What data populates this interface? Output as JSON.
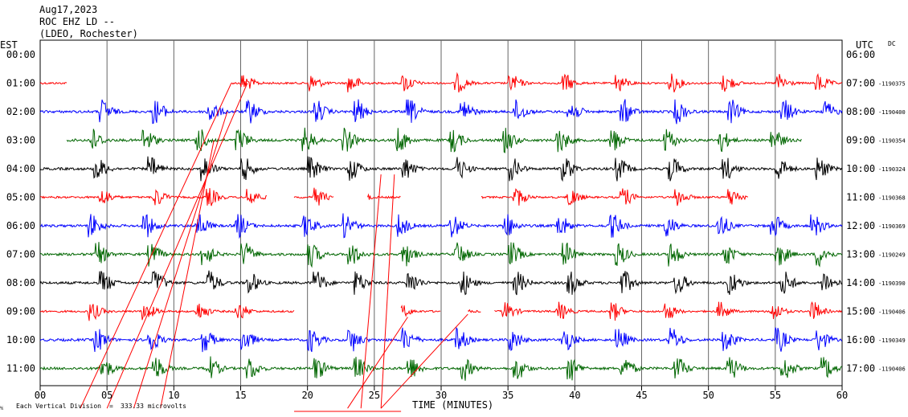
{
  "header": {
    "date": "Aug17,2023",
    "station": "ROC EHZ LD --",
    "network": "(LDEO, Rochester)"
  },
  "left_axis_label": "EST",
  "right_axis_label": "UTC",
  "dc_label": "DC",
  "chart_data": {
    "type": "line",
    "title": "ROC EHZ LD --",
    "xlabel": "TIME (MINUTES)",
    "xlim": [
      0,
      60
    ],
    "x_ticks": [
      "00",
      "05",
      "10",
      "15",
      "20",
      "25",
      "30",
      "35",
      "40",
      "45",
      "50",
      "55",
      "60"
    ],
    "grid": "vertical lines every 5 minutes",
    "scale_note_prefix": "Each Vertical Division",
    "scale_note": "333.33 microvolts",
    "colors": {
      "red": "#ff0000",
      "blue": "#0000ff",
      "green": "#006600",
      "black": "#000000"
    },
    "rows": [
      {
        "est": "00:00",
        "utc": "06:00",
        "dc": "",
        "color": "red",
        "segments": []
      },
      {
        "est": "01:00",
        "utc": "07:00",
        "dc": "1190375",
        "color": "red",
        "segments": [
          [
            0,
            2
          ],
          [
            14.3,
            60
          ]
        ]
      },
      {
        "est": "02:00",
        "utc": "08:00",
        "dc": "1190400",
        "color": "blue",
        "segments": [
          [
            0,
            60
          ]
        ]
      },
      {
        "est": "03:00",
        "utc": "09:00",
        "dc": "1190354",
        "color": "green",
        "segments": [
          [
            2,
            57
          ]
        ]
      },
      {
        "est": "04:00",
        "utc": "10:00",
        "dc": "1190324",
        "color": "black",
        "segments": [
          [
            0,
            60
          ]
        ]
      },
      {
        "est": "05:00",
        "utc": "11:00",
        "dc": "1190368",
        "color": "red",
        "segments": [
          [
            0,
            17
          ],
          [
            19,
            22
          ],
          [
            24.5,
            27
          ],
          [
            33,
            53
          ]
        ]
      },
      {
        "est": "06:00",
        "utc": "12:00",
        "dc": "1190369",
        "color": "blue",
        "segments": [
          [
            0,
            60
          ]
        ]
      },
      {
        "est": "07:00",
        "utc": "13:00",
        "dc": "1190249",
        "color": "green",
        "segments": [
          [
            0,
            60
          ]
        ]
      },
      {
        "est": "08:00",
        "utc": "14:00",
        "dc": "1190390",
        "color": "black",
        "segments": [
          [
            0,
            60
          ]
        ]
      },
      {
        "est": "09:00",
        "utc": "15:00",
        "dc": "1190406",
        "color": "red",
        "segments": [
          [
            0,
            19
          ],
          [
            27,
            30
          ],
          [
            32,
            33
          ],
          [
            34,
            60
          ]
        ]
      },
      {
        "est": "10:00",
        "utc": "16:00",
        "dc": "1190349",
        "color": "blue",
        "segments": [
          [
            0,
            60
          ]
        ]
      },
      {
        "est": "11:00",
        "utc": "17:00",
        "dc": "1190406",
        "color": "green",
        "segments": [
          [
            0,
            60
          ]
        ]
      }
    ],
    "events_minutes": [
      4,
      8,
      12,
      15,
      20,
      23,
      27,
      31,
      35,
      39,
      43,
      47,
      51,
      55,
      58
    ],
    "calibration_lines_minutes": [
      [
        [
          14.3,
          1
        ],
        [
          3,
          12.4
        ]
      ],
      [
        [
          15.5,
          1
        ],
        [
          5,
          12.4
        ]
      ],
      [
        [
          14,
          2
        ],
        [
          7,
          12.4
        ]
      ],
      [
        [
          13,
          3
        ],
        [
          9,
          12.4
        ]
      ],
      [
        [
          25.5,
          4.2
        ],
        [
          24,
          12.4
        ]
      ],
      [
        [
          26.5,
          4.2
        ],
        [
          25.5,
          12.4
        ]
      ],
      [
        [
          27.5,
          9.2
        ],
        [
          23,
          12.4
        ]
      ],
      [
        [
          32,
          9.1
        ],
        [
          25.5,
          12.4
        ]
      ]
    ]
  }
}
